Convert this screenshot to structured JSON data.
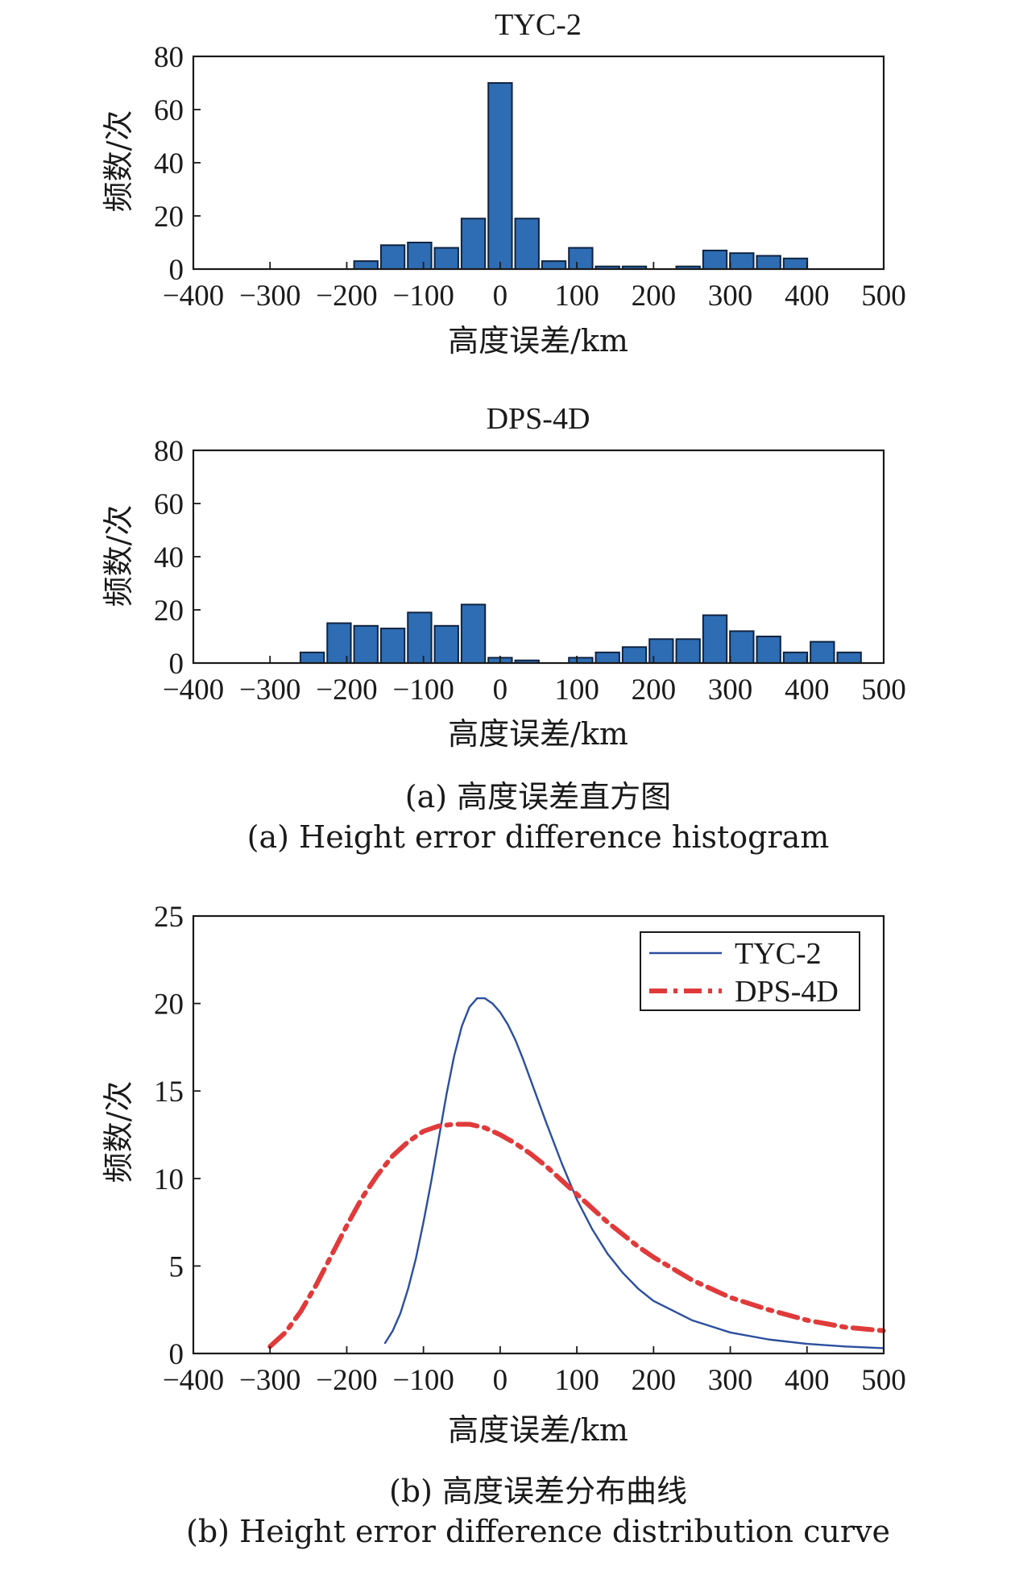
{
  "colors": {
    "bar": "#2e6db4",
    "bar_edge": "#10233f",
    "tyc_line": "#2b4f9e",
    "dps_line": "#e03a3a",
    "axis": "#1a1a1a"
  },
  "captions": {
    "a_cn": "(a) 高度误差直方图",
    "a_en": "(a) Height error difference histogram",
    "b_cn": "(b) 高度误差分布曲线",
    "b_en": "(b) Height error  difference distribution curve"
  },
  "chart_data": [
    {
      "type": "bar",
      "title": "TYC-2",
      "xlabel": "高度误差/km",
      "ylabel": "频数/次",
      "xlim": [
        -400,
        500
      ],
      "ylim": [
        0,
        80
      ],
      "xticks": [
        -400,
        -300,
        -200,
        -100,
        0,
        100,
        200,
        300,
        400,
        500
      ],
      "yticks": [
        0,
        20,
        40,
        60,
        80
      ],
      "bin_width": 35,
      "x": [
        -175,
        -140,
        -105,
        -70,
        -35,
        0,
        35,
        70,
        105,
        140,
        175,
        245,
        280,
        315,
        350,
        385
      ],
      "values": [
        3,
        9,
        10,
        8,
        19,
        70,
        19,
        3,
        8,
        1,
        1,
        1,
        7,
        6,
        5,
        4
      ]
    },
    {
      "type": "bar",
      "title": "DPS-4D",
      "xlabel": "高度误差/km",
      "ylabel": "频数/次",
      "xlim": [
        -400,
        500
      ],
      "ylim": [
        0,
        80
      ],
      "xticks": [
        -400,
        -300,
        -200,
        -100,
        0,
        100,
        200,
        300,
        400,
        500
      ],
      "yticks": [
        0,
        20,
        40,
        60,
        80
      ],
      "bin_width": 35,
      "x": [
        -245,
        -210,
        -175,
        -140,
        -105,
        -70,
        -35,
        0,
        35,
        105,
        140,
        175,
        210,
        245,
        280,
        315,
        350,
        385,
        420,
        455
      ],
      "values": [
        4,
        15,
        14,
        13,
        19,
        14,
        22,
        2,
        1,
        2,
        4,
        6,
        9,
        9,
        18,
        12,
        10,
        4,
        8,
        4
      ]
    },
    {
      "type": "line",
      "xlabel": "高度误差/km",
      "ylabel": "频数/次",
      "xlim": [
        -400,
        500
      ],
      "ylim": [
        0,
        25
      ],
      "xticks": [
        -400,
        -300,
        -200,
        -100,
        0,
        100,
        200,
        300,
        400,
        500
      ],
      "yticks": [
        0,
        5,
        10,
        15,
        20,
        25
      ],
      "legend_position": "top-right",
      "series": [
        {
          "name": "TYC-2",
          "style": "solid",
          "x": [
            -150,
            -140,
            -130,
            -120,
            -110,
            -100,
            -90,
            -80,
            -70,
            -60,
            -50,
            -40,
            -30,
            -20,
            -10,
            0,
            10,
            20,
            30,
            40,
            60,
            80,
            100,
            120,
            140,
            160,
            180,
            200,
            250,
            300,
            350,
            400,
            450,
            500
          ],
          "y": [
            0.6,
            1.3,
            2.3,
            3.7,
            5.4,
            7.5,
            9.8,
            12.3,
            14.8,
            17.0,
            18.7,
            19.8,
            20.3,
            20.3,
            20.0,
            19.5,
            18.8,
            17.9,
            16.8,
            15.6,
            13.2,
            10.9,
            8.8,
            7.1,
            5.7,
            4.6,
            3.7,
            3.0,
            1.9,
            1.2,
            0.8,
            0.55,
            0.4,
            0.3
          ]
        },
        {
          "name": "DPS-4D",
          "style": "dash-dot",
          "x": [
            -300,
            -280,
            -260,
            -240,
            -220,
            -200,
            -180,
            -160,
            -140,
            -120,
            -100,
            -80,
            -60,
            -40,
            -20,
            0,
            20,
            40,
            60,
            80,
            100,
            120,
            140,
            160,
            180,
            200,
            250,
            300,
            350,
            400,
            450,
            500
          ],
          "y": [
            0.4,
            1.2,
            2.4,
            3.9,
            5.6,
            7.3,
            8.9,
            10.2,
            11.3,
            12.1,
            12.7,
            13.0,
            13.1,
            13.1,
            12.9,
            12.5,
            12.0,
            11.4,
            10.7,
            9.9,
            9.1,
            8.3,
            7.5,
            6.8,
            6.1,
            5.5,
            4.2,
            3.2,
            2.5,
            1.9,
            1.5,
            1.3
          ]
        }
      ]
    }
  ]
}
